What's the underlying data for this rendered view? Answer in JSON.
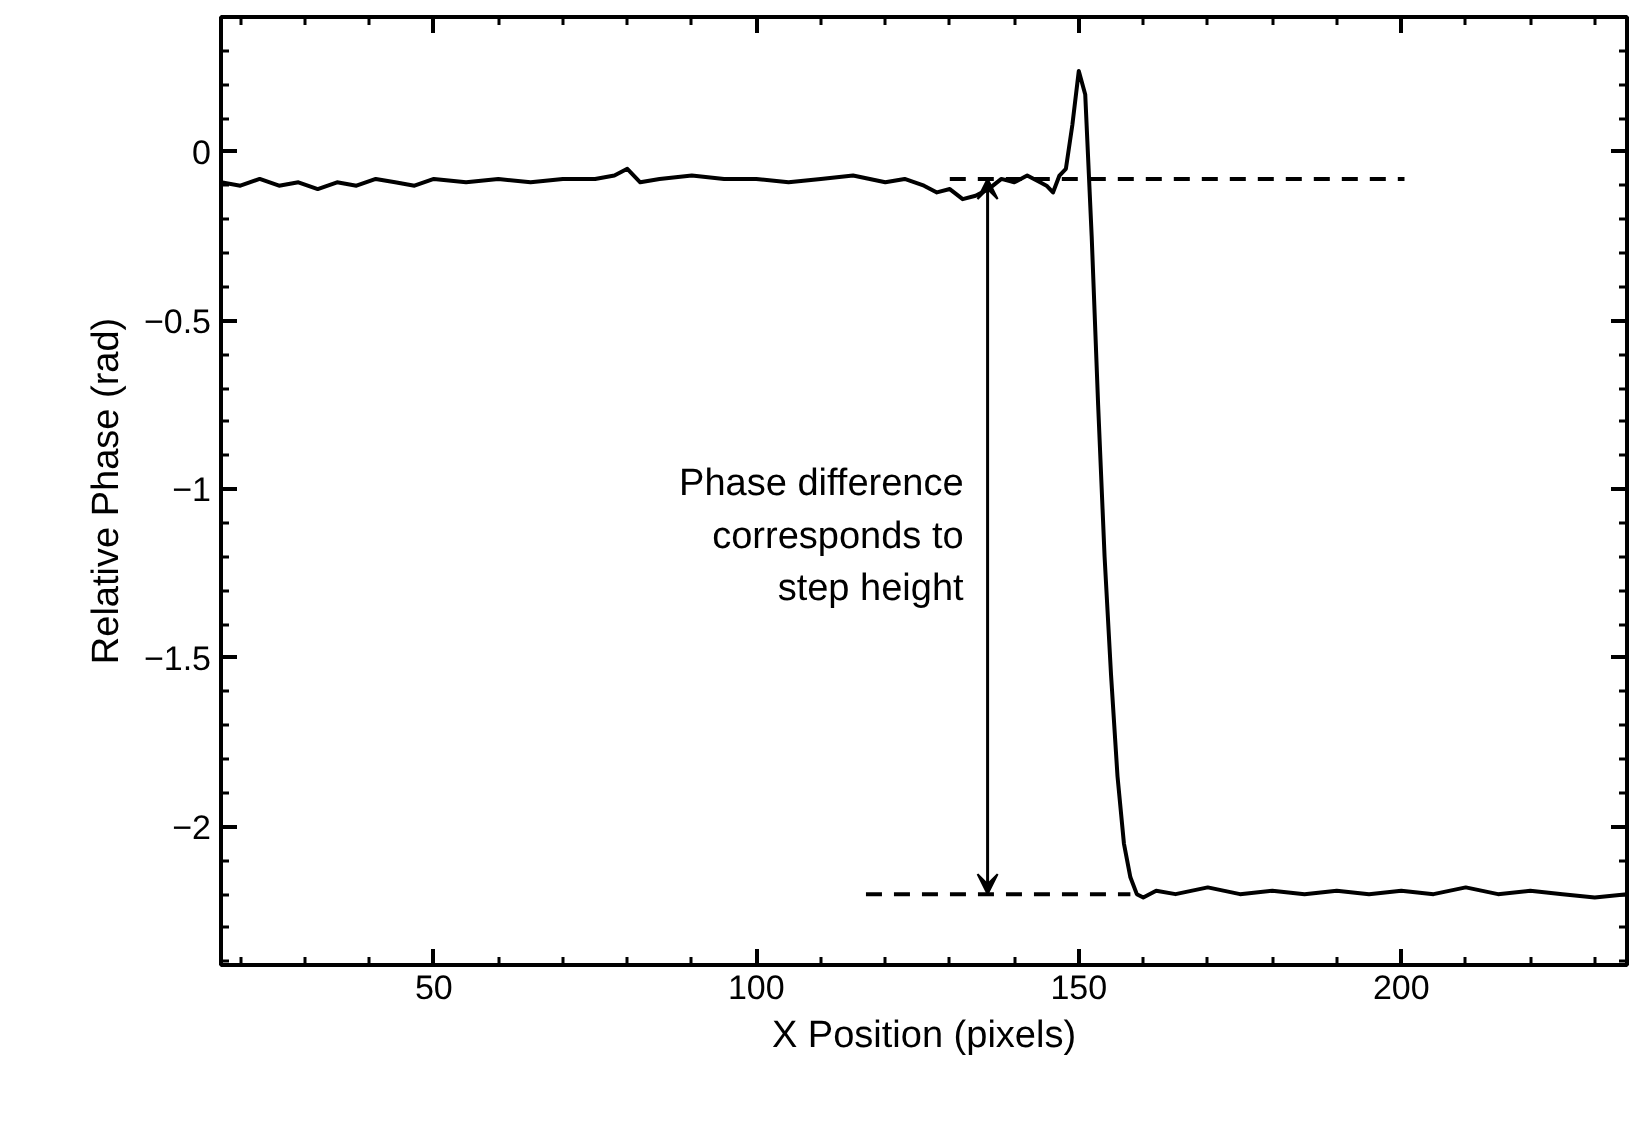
{
  "chart_data": {
    "type": "line",
    "xlabel": "X Position (pixels)",
    "ylabel": "Relative Phase (rad)",
    "xlim": [
      17,
      235
    ],
    "ylim": [
      -2.41,
      0.4
    ],
    "xticks": [
      50,
      100,
      150,
      200
    ],
    "yticks": [
      0,
      -0.5,
      -1,
      -1.5,
      -2
    ],
    "grid": false,
    "marker": "none",
    "series": [
      {
        "color": "#000000",
        "line_style": "solid",
        "x": [
          17,
          20,
          23,
          26,
          29,
          32,
          35,
          38,
          41,
          44,
          47,
          50,
          55,
          60,
          65,
          70,
          75,
          78,
          80,
          82,
          85,
          90,
          95,
          100,
          105,
          110,
          115,
          120,
          123,
          126,
          128,
          130,
          132,
          134,
          136,
          138,
          140,
          142,
          144,
          145,
          146,
          147,
          148,
          149,
          150,
          151,
          152,
          153,
          154,
          155,
          156,
          157,
          158,
          159,
          160,
          162,
          165,
          170,
          175,
          180,
          185,
          190,
          195,
          200,
          205,
          210,
          215,
          220,
          225,
          230,
          235
        ],
        "values": [
          -0.09,
          -0.1,
          -0.08,
          -0.1,
          -0.09,
          -0.11,
          -0.09,
          -0.1,
          -0.08,
          -0.09,
          -0.1,
          -0.08,
          -0.09,
          -0.08,
          -0.09,
          -0.08,
          -0.08,
          -0.07,
          -0.05,
          -0.09,
          -0.08,
          -0.07,
          -0.08,
          -0.08,
          -0.09,
          -0.08,
          -0.07,
          -0.09,
          -0.08,
          -0.1,
          -0.12,
          -0.11,
          -0.14,
          -0.13,
          -0.11,
          -0.08,
          -0.09,
          -0.07,
          -0.09,
          -0.1,
          -0.12,
          -0.07,
          -0.05,
          0.08,
          0.24,
          0.17,
          -0.25,
          -0.75,
          -1.2,
          -1.55,
          -1.85,
          -2.05,
          -2.15,
          -2.2,
          -2.21,
          -2.19,
          -2.2,
          -2.18,
          -2.2,
          -2.19,
          -2.2,
          -2.19,
          -2.2,
          -2.19,
          -2.2,
          -2.18,
          -2.2,
          -2.19,
          -2.2,
          -2.21,
          -2.2
        ]
      },
      {
        "color": "#000000",
        "line_style": "dashed",
        "x": [
          130,
          200.5
        ],
        "values": [
          -0.08,
          -0.08
        ]
      },
      {
        "color": "#000000",
        "line_style": "dashed",
        "x": [
          117,
          158
        ],
        "values": [
          -2.2,
          -2.2
        ]
      }
    ],
    "annotations": [
      "Phase difference\ncorresponds to\nstep height"
    ]
  }
}
